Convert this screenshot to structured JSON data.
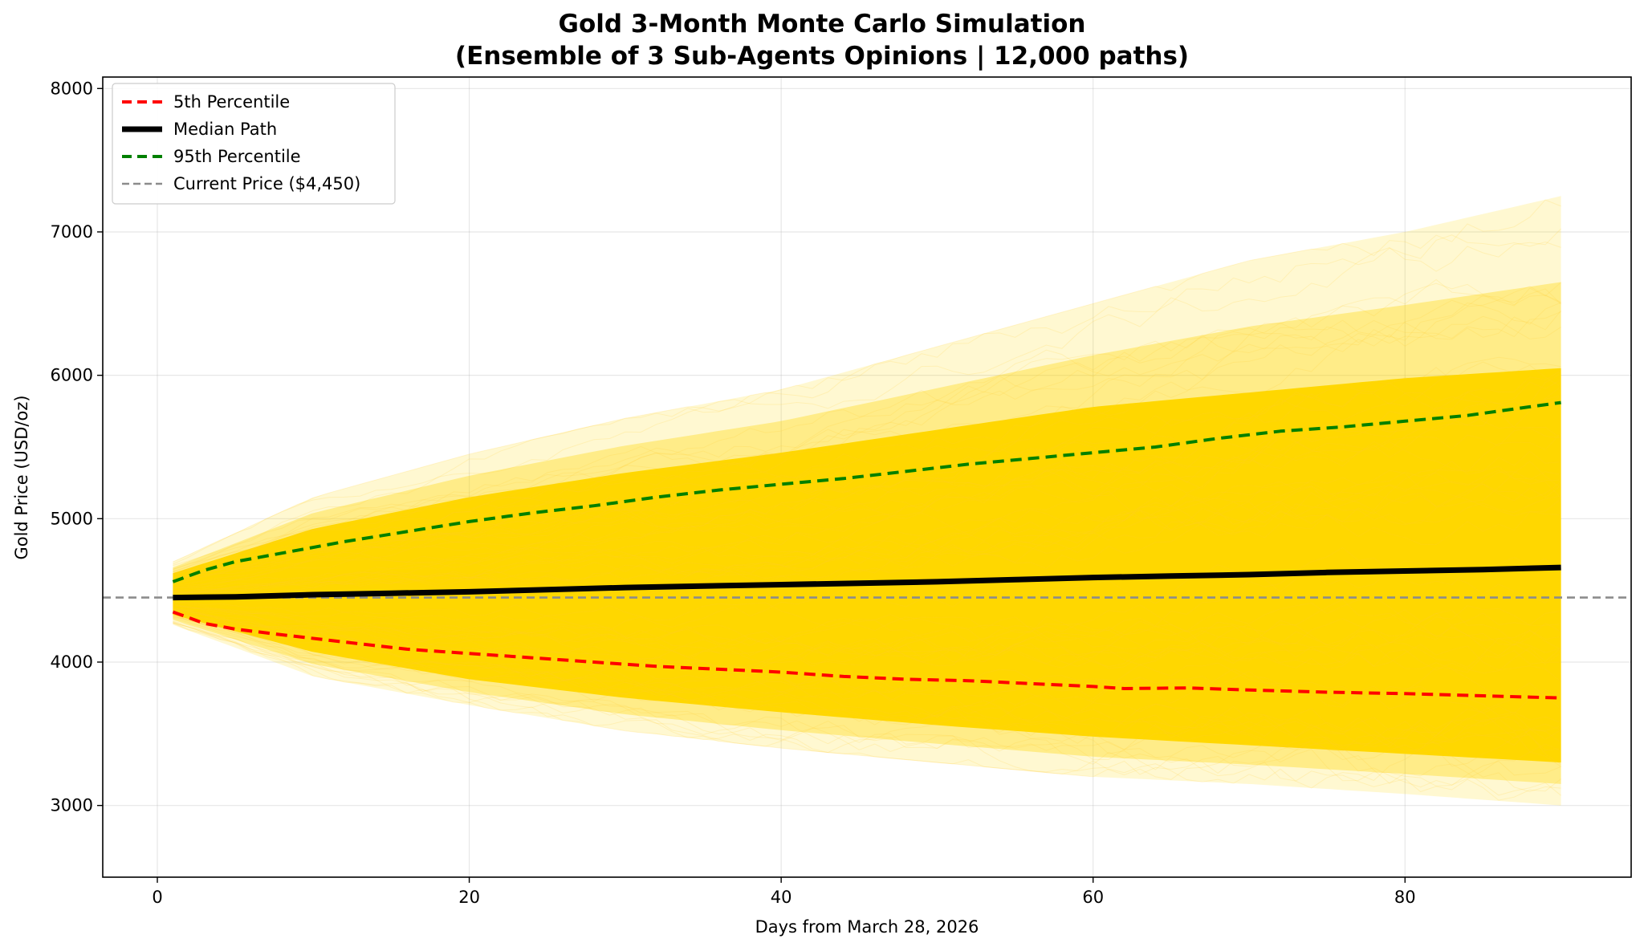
{
  "chart_data": {
    "type": "line",
    "title": "Gold 3-Month Monte Carlo Simulation",
    "subtitle": "(Ensemble of 3 Sub-Agents Opinions | 12,000 paths)",
    "xlabel": "Days from March 28, 2026",
    "ylabel": "Gold Price (USD/oz)",
    "xlim": [
      -3.5,
      94.5
    ],
    "ylim": [
      2500,
      8080
    ],
    "xticks": [
      "0",
      "20",
      "40",
      "60",
      "80"
    ],
    "yticks": [
      "3000",
      "4000",
      "5000",
      "6000",
      "7000",
      "8000"
    ],
    "grid": true,
    "legend_position": "top-left",
    "reference_line": {
      "name": "Current Price ($4,450)",
      "y": 4450,
      "style": "dashed",
      "color": "#8c8c8c"
    },
    "fan": {
      "description_color": "#ffd700",
      "x": [
        1,
        10,
        20,
        30,
        40,
        50,
        60,
        70,
        80,
        90
      ],
      "dense_low": [
        4330,
        4070,
        3880,
        3750,
        3650,
        3560,
        3480,
        3420,
        3360,
        3300
      ],
      "dense_high": [
        4620,
        4930,
        5150,
        5320,
        5460,
        5620,
        5780,
        5880,
        5980,
        6050
      ],
      "outer_low": [
        4260,
        3900,
        3700,
        3520,
        3400,
        3300,
        3200,
        3150,
        3080,
        3000
      ],
      "outer_high": [
        4700,
        5150,
        5450,
        5700,
        5900,
        6200,
        6500,
        6800,
        7000,
        7250
      ]
    },
    "series": [
      {
        "name": "5th Percentile",
        "color": "#ff0000",
        "style": "dashed",
        "x": [
          1,
          3,
          5,
          8,
          12,
          16,
          20,
          24,
          28,
          32,
          36,
          40,
          44,
          48,
          52,
          56,
          60,
          62,
          66,
          70,
          75,
          80,
          85,
          90
        ],
        "values": [
          4350,
          4270,
          4230,
          4190,
          4140,
          4090,
          4060,
          4030,
          4000,
          3970,
          3950,
          3930,
          3900,
          3880,
          3870,
          3850,
          3830,
          3815,
          3820,
          3805,
          3790,
          3780,
          3765,
          3750
        ]
      },
      {
        "name": "Median Path",
        "color": "#000000",
        "style": "solid",
        "x": [
          1,
          5,
          10,
          15,
          20,
          25,
          30,
          35,
          40,
          45,
          50,
          55,
          60,
          65,
          70,
          75,
          80,
          85,
          90
        ],
        "values": [
          4450,
          4455,
          4470,
          4480,
          4490,
          4505,
          4520,
          4530,
          4540,
          4550,
          4560,
          4575,
          4590,
          4600,
          4610,
          4625,
          4635,
          4645,
          4660
        ]
      },
      {
        "name": "95th Percentile",
        "color": "#008000",
        "style": "dashed",
        "x": [
          1,
          3,
          5,
          8,
          12,
          16,
          20,
          24,
          28,
          32,
          36,
          40,
          44,
          48,
          52,
          56,
          60,
          64,
          68,
          72,
          76,
          80,
          84,
          88,
          90
        ],
        "values": [
          4560,
          4640,
          4700,
          4760,
          4840,
          4910,
          4980,
          5040,
          5090,
          5150,
          5200,
          5240,
          5280,
          5330,
          5380,
          5420,
          5460,
          5500,
          5560,
          5610,
          5640,
          5680,
          5720,
          5780,
          5810
        ]
      }
    ],
    "legend": [
      {
        "label": "5th Percentile",
        "color": "#ff0000",
        "style": "dashed"
      },
      {
        "label": "Median Path",
        "color": "#000000",
        "style": "solid-thick"
      },
      {
        "label": "95th Percentile",
        "color": "#008000",
        "style": "dashed"
      },
      {
        "label": "Current Price ($4,450)",
        "color": "#8c8c8c",
        "style": "dashed-thin"
      }
    ]
  }
}
